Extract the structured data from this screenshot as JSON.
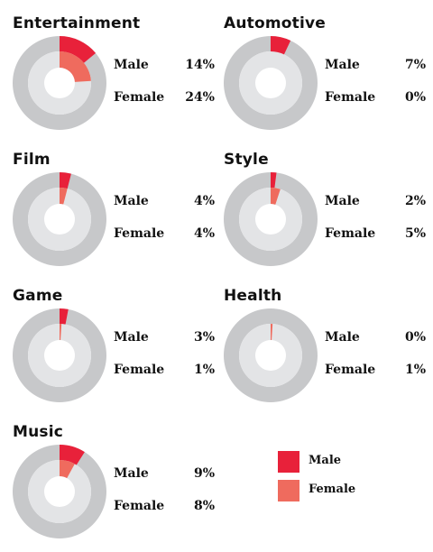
{
  "colors": {
    "male": "#e8213a",
    "female": "#ef6b5e",
    "outer_track": "#c7c8ca",
    "inner_track": "#e3e4e6"
  },
  "legend": {
    "male_label": "Male",
    "female_label": "Female"
  },
  "chart_data": [
    {
      "type": "pie",
      "title": "Entertainment",
      "series": [
        {
          "name": "Male",
          "value": 14,
          "label": "14%"
        },
        {
          "name": "Female",
          "value": 24,
          "label": "24%"
        }
      ]
    },
    {
      "type": "pie",
      "title": "Automotive",
      "series": [
        {
          "name": "Male",
          "value": 7,
          "label": "7%"
        },
        {
          "name": "Female",
          "value": 0,
          "label": "0%"
        }
      ]
    },
    {
      "type": "pie",
      "title": "Film",
      "series": [
        {
          "name": "Male",
          "value": 4,
          "label": "4%"
        },
        {
          "name": "Female",
          "value": 4,
          "label": "4%"
        }
      ]
    },
    {
      "type": "pie",
      "title": "Style",
      "series": [
        {
          "name": "Male",
          "value": 2,
          "label": "2%"
        },
        {
          "name": "Female",
          "value": 5,
          "label": "5%"
        }
      ]
    },
    {
      "type": "pie",
      "title": "Game",
      "series": [
        {
          "name": "Male",
          "value": 3,
          "label": "3%"
        },
        {
          "name": "Female",
          "value": 1,
          "label": "1%"
        }
      ]
    },
    {
      "type": "pie",
      "title": "Health",
      "series": [
        {
          "name": "Male",
          "value": 0,
          "label": "0%"
        },
        {
          "name": "Female",
          "value": 1,
          "label": "1%"
        }
      ]
    },
    {
      "type": "pie",
      "title": "Music",
      "series": [
        {
          "name": "Male",
          "value": 9,
          "label": "9%"
        },
        {
          "name": "Female",
          "value": 8,
          "label": "8%"
        }
      ]
    }
  ]
}
